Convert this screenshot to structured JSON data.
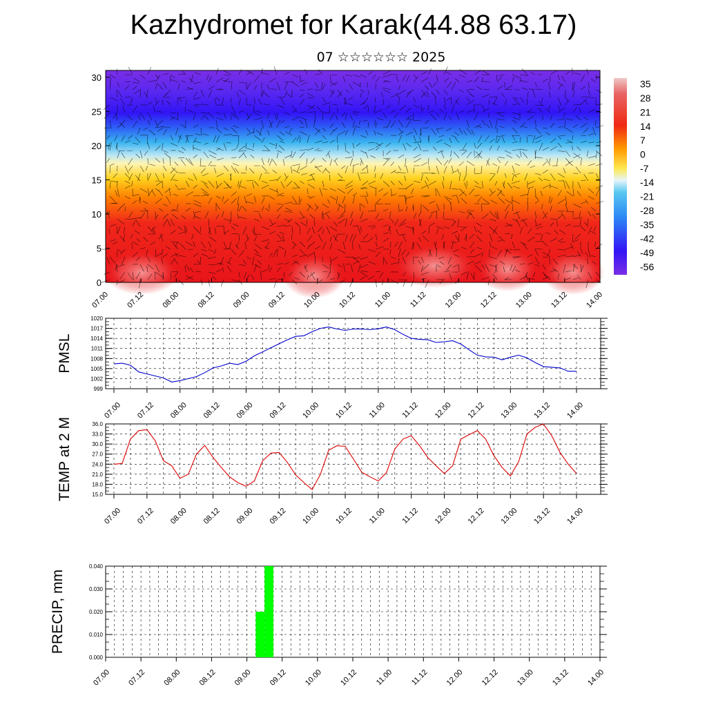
{
  "header": {
    "title": "Kazhydromet for Karak(44.88 63.17)",
    "subtitle": "07 ☆☆☆☆☆☆ 2025"
  },
  "chart_data": [
    {
      "type": "heatmap",
      "name": "temperature-vertical-section",
      "x_tick_labels": [
        "07.00",
        "07.12",
        "08.00",
        "08.12",
        "09.00",
        "09.12",
        "10.00",
        "10.12",
        "11.00",
        "11.12",
        "12.00",
        "12.12",
        "13.00",
        "13.12",
        "14.00"
      ],
      "y_tick_labels": [
        "0",
        "5",
        "10",
        "15",
        "20",
        "25",
        "30"
      ],
      "ylim": [
        0,
        31
      ],
      "colorbar_labels": [
        "35",
        "28",
        "21",
        "14",
        "7",
        "0",
        "-7",
        "-14",
        "-21",
        "-28",
        "-35",
        "-42",
        "-49",
        "-56"
      ],
      "colorbar_range": [
        -60,
        38
      ],
      "overlay": "wind vectors",
      "colors": {
        "hot": "#e8141a",
        "warm": "#ff7f00",
        "mild": "#ffd21e",
        "cold": "#3ab4f0",
        "frigid": "#3214f5",
        "deep": "#7a2ee6"
      }
    },
    {
      "type": "line",
      "name": "pmsl",
      "ylabel": "PMSL",
      "ylim": [
        999,
        1020
      ],
      "y_tick_labels": [
        "999",
        "1002",
        "1005",
        "1008",
        "1011",
        "1014",
        "1017",
        "1020"
      ],
      "x_tick_labels": [
        "07.00",
        "07.12",
        "08.00",
        "08.12",
        "09.00",
        "09.12",
        "10.00",
        "10.12",
        "11.00",
        "11.12",
        "12.00",
        "12.12",
        "13.00",
        "13.12",
        "14.00"
      ],
      "color": "#0000cc",
      "x": [
        0,
        3,
        6,
        9,
        12,
        15,
        18,
        21,
        24,
        27,
        30,
        33,
        36,
        39,
        42,
        45,
        48,
        51,
        54,
        57,
        60,
        63,
        66,
        69,
        72,
        75,
        78,
        81,
        84,
        87,
        90,
        93,
        96,
        99,
        102,
        105,
        108,
        111,
        114,
        117,
        120,
        123,
        126,
        129,
        132,
        135,
        138,
        141,
        144,
        147,
        150,
        153,
        156,
        159,
        162,
        165,
        168
      ],
      "values": [
        1006.4,
        1006.6,
        1006.0,
        1004.0,
        1003.4,
        1002.8,
        1002.2,
        1001.0,
        1001.4,
        1002.0,
        1002.6,
        1003.8,
        1005.2,
        1005.8,
        1006.6,
        1006.2,
        1007.2,
        1008.8,
        1010.0,
        1011.2,
        1012.4,
        1013.6,
        1014.6,
        1014.8,
        1016.0,
        1017.0,
        1017.4,
        1016.8,
        1016.4,
        1016.8,
        1016.8,
        1016.6,
        1016.9,
        1017.4,
        1016.6,
        1015.2,
        1014.0,
        1013.7,
        1013.6,
        1012.8,
        1013.0,
        1013.3,
        1012.3,
        1010.6,
        1009.0,
        1008.5,
        1008.4,
        1007.6,
        1008.4,
        1009.0,
        1008.2,
        1006.8,
        1005.6,
        1005.4,
        1005.2,
        1004.2,
        1004.2
      ]
    },
    {
      "type": "line",
      "name": "temp-2m",
      "ylabel": "TEMP at 2 M",
      "ylim": [
        15.0,
        36.0
      ],
      "y_tick_labels": [
        "15.0",
        "18.0",
        "21.0",
        "24.0",
        "27.0",
        "30.0",
        "33.0",
        "36.0"
      ],
      "x_tick_labels": [
        "07.00",
        "07.12",
        "08.00",
        "08.12",
        "09.00",
        "09.12",
        "10.00",
        "10.12",
        "11.00",
        "11.12",
        "12.00",
        "12.12",
        "13.00",
        "13.12",
        "14.00"
      ],
      "color": "#dd0000",
      "x": [
        0,
        3,
        6,
        9,
        12,
        15,
        18,
        21,
        24,
        27,
        30,
        33,
        36,
        39,
        42,
        45,
        48,
        51,
        54,
        57,
        60,
        63,
        66,
        69,
        72,
        75,
        78,
        81,
        84,
        87,
        90,
        93,
        96,
        99,
        102,
        105,
        108,
        111,
        114,
        117,
        120,
        123,
        126,
        129,
        132,
        135,
        138,
        141,
        144,
        147,
        150,
        153,
        156,
        159,
        162,
        165,
        168
      ],
      "values": [
        24.0,
        24.2,
        31.5,
        34.0,
        34.3,
        31.0,
        25.0,
        23.5,
        19.8,
        21.0,
        27.0,
        29.6,
        26.0,
        23.0,
        20.2,
        18.5,
        17.4,
        19.0,
        25.0,
        27.3,
        27.5,
        24.5,
        20.8,
        18.5,
        16.4,
        21.0,
        28.2,
        29.5,
        29.3,
        25.5,
        21.6,
        20.2,
        19.0,
        21.5,
        28.5,
        31.5,
        32.5,
        29.5,
        26.0,
        23.5,
        21.2,
        23.5,
        31.5,
        32.8,
        34.0,
        31.5,
        26.5,
        23.0,
        20.5,
        24.8,
        33.0,
        35.0,
        36.0,
        32.5,
        27.5,
        24.0,
        21.2
      ]
    },
    {
      "type": "bar",
      "name": "precip",
      "ylabel": "PRECIP, mm",
      "ylim": [
        0.0,
        0.04
      ],
      "y_tick_labels": [
        "0.000",
        "0.010",
        "0.020",
        "0.030",
        "0.040"
      ],
      "x_tick_labels": [
        "07.00",
        "07.12",
        "08.00",
        "08.12",
        "09.00",
        "09.12",
        "10.00",
        "10.12",
        "11.00",
        "11.12",
        "12.00",
        "12.12",
        "13.00",
        "13.12",
        "14.00"
      ],
      "color": "#00ff00",
      "bars": [
        {
          "x_start": 51,
          "x_end": 54,
          "value": 0.02
        },
        {
          "x_start": 54,
          "x_end": 57,
          "value": 0.04
        }
      ]
    }
  ]
}
